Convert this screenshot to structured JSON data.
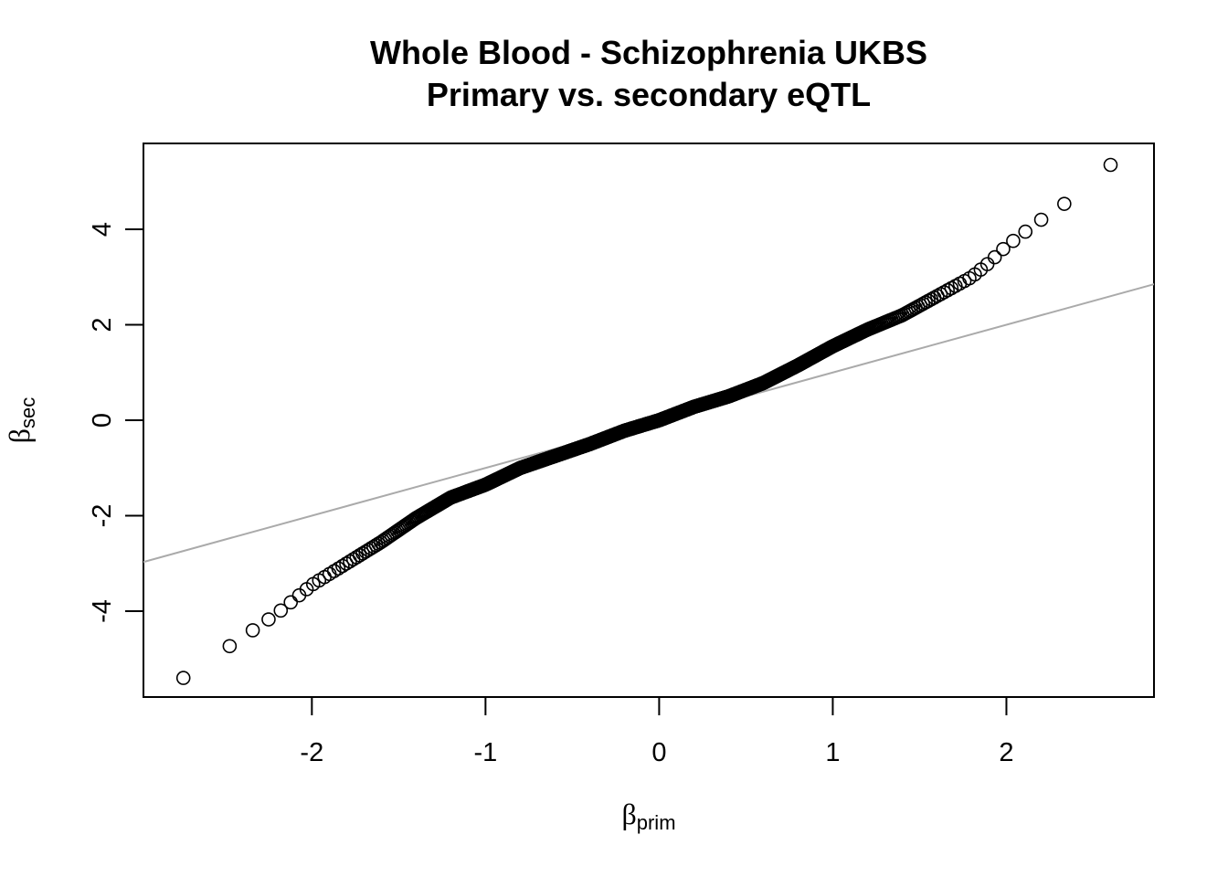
{
  "chart_data": {
    "type": "scatter",
    "title": "Whole Blood - Schizophrenia UKBS",
    "subtitle": "Primary vs. secondary eQTL",
    "xlabel": {
      "symbol": "β",
      "subscript": "prim"
    },
    "ylabel": {
      "symbol": "β",
      "subscript": "sec"
    },
    "xlim": [
      -2.97,
      2.85
    ],
    "ylim": [
      -5.8,
      5.8
    ],
    "x_ticks": [
      -2,
      -1,
      0,
      1,
      2
    ],
    "x_tick_labels": [
      "-2",
      "-1",
      "0",
      "1",
      "2"
    ],
    "y_ticks": [
      -4,
      -2,
      0,
      2,
      4
    ],
    "y_tick_labels": [
      "-4",
      "-2",
      "0",
      "2",
      "4"
    ],
    "grid": false,
    "legend": "none",
    "marker": "open-circle",
    "marker_color": "#000000",
    "reference_line": {
      "type": "identity",
      "slope": 1,
      "intercept": 0,
      "color": "#aaaaaa"
    },
    "points": {
      "description_curve_knots_x": [
        -2.74,
        -2.6,
        -2.4,
        -2.2,
        -2.0,
        -1.8,
        -1.6,
        -1.4,
        -1.2,
        -1.0,
        -0.8,
        -0.6,
        -0.4,
        -0.2,
        0.0,
        0.2,
        0.4,
        0.6,
        0.8,
        1.0,
        1.2,
        1.4,
        1.6,
        1.8,
        1.9,
        2.0,
        2.2,
        2.4,
        2.55,
        2.6
      ],
      "description_curve_knots_y": [
        -5.4,
        -5.05,
        -4.55,
        -4.05,
        -3.45,
        -3.0,
        -2.55,
        -2.05,
        -1.62,
        -1.35,
        -1.0,
        -0.75,
        -0.5,
        -0.22,
        0.0,
        0.28,
        0.5,
        0.78,
        1.15,
        1.55,
        1.9,
        2.2,
        2.6,
        3.0,
        3.3,
        3.65,
        4.2,
        4.7,
        5.1,
        5.35
      ],
      "count": 900
    }
  }
}
